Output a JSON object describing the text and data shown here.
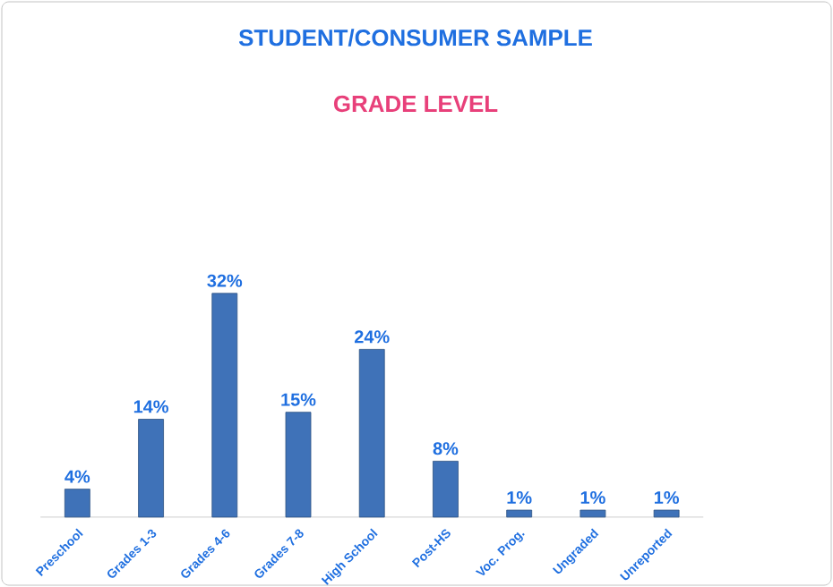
{
  "chart_data": {
    "type": "bar",
    "title": "STUDENT/CONSUMER SAMPLE",
    "subtitle": "GRADE LEVEL",
    "categories": [
      "Preschool",
      "Grades 1-3",
      "Grades 4-6",
      "Grades 7-8",
      "High School",
      "Post-HS",
      "Voc. Prog.",
      "Ungraded",
      "Unreported"
    ],
    "values": [
      4,
      14,
      32,
      15,
      24,
      8,
      1,
      1,
      1
    ],
    "value_labels": [
      "4%",
      "14%",
      "32%",
      "15%",
      "24%",
      "8%",
      "1%",
      "1%",
      "1%"
    ],
    "color": "#3f72b8"
  }
}
